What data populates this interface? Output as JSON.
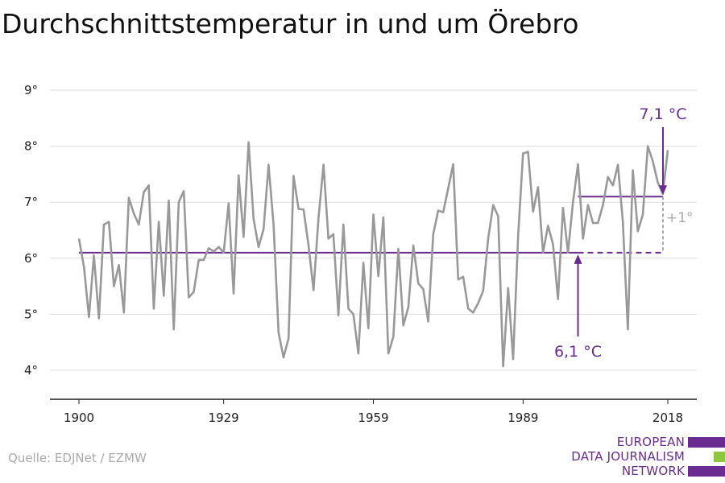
{
  "page": {
    "title": "Durchschnittstemperatur in und um Örebro",
    "source": "Quelle: EDJNet / EZMW"
  },
  "logo": {
    "lines": [
      "EUROPEAN",
      "DATA JOURNALISM",
      "NETWORK"
    ],
    "colors": [
      "#6a2c91",
      "#8dc63f",
      "#6a2c91"
    ]
  },
  "colors": {
    "line": "#999999",
    "accent": "#6a2c91",
    "delta": "#aaaaaa",
    "grid": "#dddddd"
  },
  "chart_data": {
    "type": "line",
    "title": "Durchschnittstemperatur in und um Örebro",
    "xlabel": "",
    "ylabel": "",
    "xlim": [
      1900,
      2018
    ],
    "ylim": [
      4,
      9
    ],
    "x_ticks": [
      1900,
      1929,
      1959,
      1989,
      2018
    ],
    "y_ticks": [
      4,
      5,
      6,
      7,
      8,
      9
    ],
    "y_tick_labels": [
      "4°",
      "5°",
      "6°",
      "7°",
      "8°",
      "9°"
    ],
    "grid": true,
    "series": [
      {
        "x": [
          1900,
          1901,
          1902,
          1903,
          1904,
          1905,
          1906,
          1907,
          1908,
          1909,
          1910,
          1911,
          1912,
          1913,
          1914,
          1915,
          1916,
          1917,
          1918,
          1919,
          1920,
          1921,
          1922,
          1923,
          1924,
          1925,
          1926,
          1927,
          1928,
          1929,
          1930,
          1931,
          1932,
          1933,
          1934,
          1935,
          1936,
          1937,
          1938,
          1939,
          1940,
          1941,
          1942,
          1943,
          1944,
          1945,
          1946,
          1947,
          1948,
          1949,
          1950,
          1951,
          1952,
          1953,
          1954,
          1955,
          1956,
          1957,
          1958,
          1959,
          1960,
          1961,
          1962,
          1963,
          1964,
          1965,
          1966,
          1967,
          1968,
          1969,
          1970,
          1971,
          1972,
          1973,
          1974,
          1975,
          1976,
          1977,
          1978,
          1979,
          1980,
          1981,
          1982,
          1983,
          1984,
          1985,
          1986,
          1987,
          1988,
          1989,
          1990,
          1991,
          1992,
          1993,
          1994,
          1995,
          1996,
          1997,
          1998,
          1999,
          2000,
          2001,
          2002,
          2003,
          2004,
          2005,
          2006,
          2007,
          2008,
          2009,
          2010,
          2011,
          2012,
          2013,
          2014,
          2015,
          2016,
          2017,
          2018
        ],
        "values": [
          6.35,
          5.85,
          4.95,
          6.05,
          4.93,
          6.6,
          6.65,
          5.5,
          5.88,
          5.03,
          7.08,
          6.8,
          6.6,
          7.18,
          7.3,
          5.1,
          6.65,
          5.33,
          7.03,
          4.73,
          7.0,
          7.2,
          5.3,
          5.4,
          5.97,
          5.97,
          6.18,
          6.12,
          6.2,
          6.1,
          6.98,
          5.37,
          7.48,
          6.38,
          8.07,
          6.7,
          6.2,
          6.52,
          7.67,
          6.6,
          4.67,
          4.23,
          4.57,
          7.47,
          6.88,
          6.87,
          6.23,
          5.43,
          6.72,
          7.67,
          6.35,
          6.43,
          4.98,
          6.6,
          5.1,
          5.0,
          4.3,
          5.92,
          4.75,
          6.78,
          5.68,
          6.73,
          4.3,
          4.6,
          6.17,
          4.8,
          5.13,
          6.23,
          5.55,
          5.45,
          4.87,
          6.43,
          6.85,
          6.82,
          7.25,
          7.68,
          5.62,
          5.67,
          5.1,
          5.03,
          5.2,
          5.42,
          6.35,
          6.95,
          6.75,
          4.07,
          5.47,
          4.2,
          6.4,
          7.87,
          7.9,
          6.83,
          7.27,
          6.1,
          6.58,
          6.25,
          5.27,
          6.9,
          6.1,
          7.0,
          7.68,
          6.35,
          6.95,
          6.63,
          6.63,
          6.95,
          7.45,
          7.3,
          7.67,
          6.65,
          4.73,
          7.57,
          6.48,
          6.78,
          8.0,
          7.73,
          7.35,
          7.15,
          7.93
        ]
      }
    ],
    "reference_lines": [
      {
        "from": 1900,
        "to": 2018,
        "value": 6.1,
        "label": "6,1 °C"
      },
      {
        "from": 2000,
        "to": 2018,
        "value": 7.1,
        "label": "7,1 °C"
      }
    ],
    "delta_label": "+1°"
  }
}
